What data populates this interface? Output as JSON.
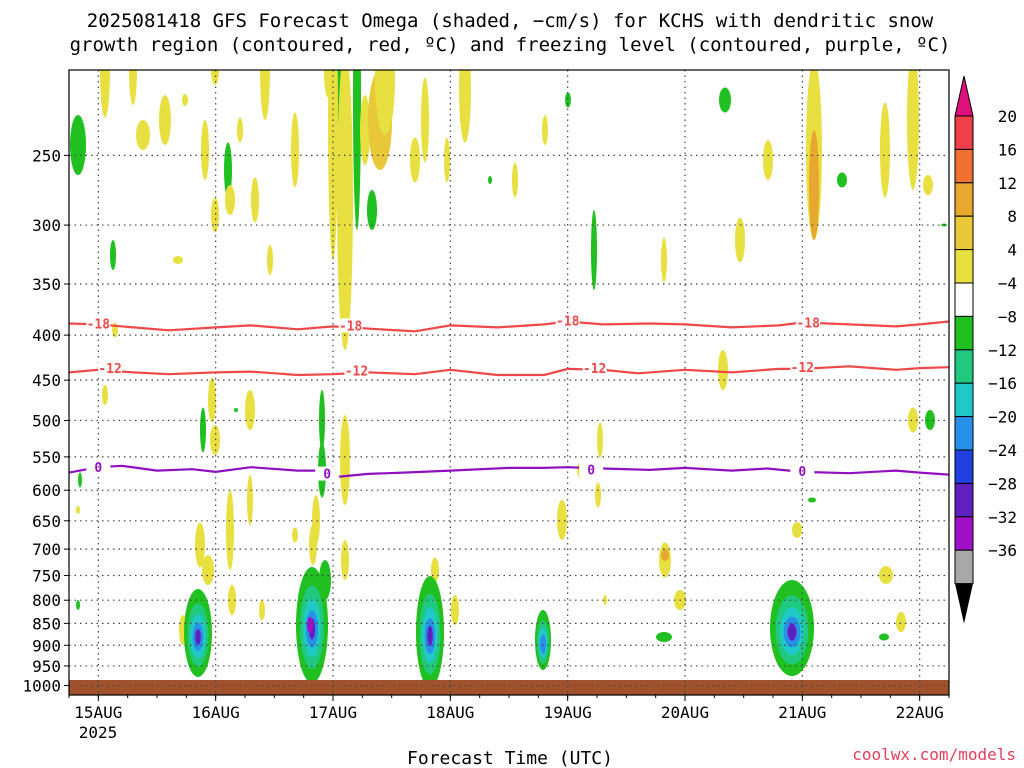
{
  "chart_data": {
    "type": "heatmap",
    "title_lines": [
      "2025081418 GFS Forecast Omega (shaded, −cm/s) for KCHS with dendritic snow",
      "growth region (contoured, red, ºC) and freezing level (contoured, purple, ºC)"
    ],
    "xlabel": "Forecast Time (UTC)",
    "credit": "coolwx.com/models",
    "x_ticks": [
      "15AUG",
      "16AUG",
      "17AUG",
      "18AUG",
      "19AUG",
      "20AUG",
      "21AUG",
      "22AUG"
    ],
    "x_year": "2025",
    "x_range_days": [
      14.75,
      22.25
    ],
    "y_ticks": [
      250,
      300,
      350,
      400,
      450,
      500,
      550,
      600,
      650,
      700,
      750,
      800,
      850,
      900,
      950,
      1000
    ],
    "y_range_hpa": [
      1025,
      200
    ],
    "y_scale": "log",
    "grid": true,
    "colorbar": {
      "labels": [
        "20",
        "16",
        "12",
        "8",
        "4",
        "−4",
        "−8",
        "−12",
        "−16",
        "−20",
        "−24",
        "−28",
        "−32",
        "−36"
      ],
      "colors": [
        "#f0404a",
        "#f07030",
        "#e8a830",
        "#e8c838",
        "#e8e040",
        "#ffffff",
        "#20c020",
        "#20c880",
        "#20c8c8",
        "#2890e8",
        "#2040e0",
        "#6020c0",
        "#a010c8",
        "#a8a8a8"
      ],
      "top_arrow_color": "#e0107a",
      "bottom_arrow_color": "#000000"
    },
    "contours": [
      {
        "name": "-18",
        "color": "#f04848",
        "points": [
          [
            14.75,
            388
          ],
          [
            15.0,
            389
          ],
          [
            15.3,
            392
          ],
          [
            15.6,
            395
          ],
          [
            16.0,
            392
          ],
          [
            16.3,
            390
          ],
          [
            16.7,
            394
          ],
          [
            17.0,
            391
          ],
          [
            17.4,
            394
          ],
          [
            17.7,
            396
          ],
          [
            18.0,
            390
          ],
          [
            18.4,
            392
          ],
          [
            18.8,
            389
          ],
          [
            19.0,
            386
          ],
          [
            19.3,
            389
          ],
          [
            19.7,
            388
          ],
          [
            20.0,
            389
          ],
          [
            20.4,
            392
          ],
          [
            20.8,
            390
          ],
          [
            21.0,
            387
          ],
          [
            21.4,
            389
          ],
          [
            21.8,
            391
          ],
          [
            22.0,
            389
          ],
          [
            22.25,
            386
          ]
        ],
        "labels": [
          [
            15.0,
            389
          ],
          [
            17.15,
            391
          ],
          [
            19.0,
            386
          ],
          [
            21.05,
            388
          ]
        ]
      },
      {
        "name": "-12",
        "color": "#f04848",
        "points": [
          [
            14.75,
            441
          ],
          [
            15.0,
            438
          ],
          [
            15.3,
            441
          ],
          [
            15.6,
            443
          ],
          [
            16.0,
            441
          ],
          [
            16.3,
            440
          ],
          [
            16.7,
            444
          ],
          [
            17.0,
            443
          ],
          [
            17.3,
            441
          ],
          [
            17.7,
            443
          ],
          [
            18.0,
            438
          ],
          [
            18.4,
            444
          ],
          [
            18.8,
            444
          ],
          [
            19.0,
            437
          ],
          [
            19.3,
            438
          ],
          [
            19.6,
            442
          ],
          [
            20.0,
            438
          ],
          [
            20.4,
            441
          ],
          [
            20.8,
            437
          ],
          [
            21.0,
            437
          ],
          [
            21.4,
            434
          ],
          [
            21.8,
            438
          ],
          [
            22.0,
            436
          ],
          [
            22.25,
            435
          ]
        ],
        "labels": [
          [
            15.1,
            437
          ],
          [
            17.2,
            440
          ],
          [
            19.23,
            437
          ],
          [
            21.0,
            436
          ]
        ]
      },
      {
        "name": "0",
        "color": "#9010c0",
        "points": [
          [
            14.75,
            573
          ],
          [
            15.0,
            565
          ],
          [
            15.2,
            563
          ],
          [
            15.5,
            570
          ],
          [
            15.8,
            568
          ],
          [
            16.0,
            572
          ],
          [
            16.3,
            565
          ],
          [
            16.7,
            570
          ],
          [
            16.9,
            570
          ],
          [
            17.0,
            580
          ],
          [
            17.3,
            575
          ],
          [
            17.6,
            573
          ],
          [
            18.0,
            570
          ],
          [
            18.5,
            566
          ],
          [
            18.8,
            566
          ],
          [
            19.0,
            565
          ],
          [
            19.3,
            567
          ],
          [
            19.7,
            569
          ],
          [
            20.0,
            566
          ],
          [
            20.4,
            570
          ],
          [
            20.7,
            567
          ],
          [
            21.0,
            572
          ],
          [
            21.4,
            574
          ],
          [
            21.8,
            570
          ],
          [
            22.0,
            573
          ],
          [
            22.25,
            576
          ]
        ],
        "labels": [
          [
            15.0,
            566
          ],
          [
            16.95,
            576
          ],
          [
            19.2,
            570
          ],
          [
            21.0,
            572
          ]
        ]
      }
    ]
  }
}
